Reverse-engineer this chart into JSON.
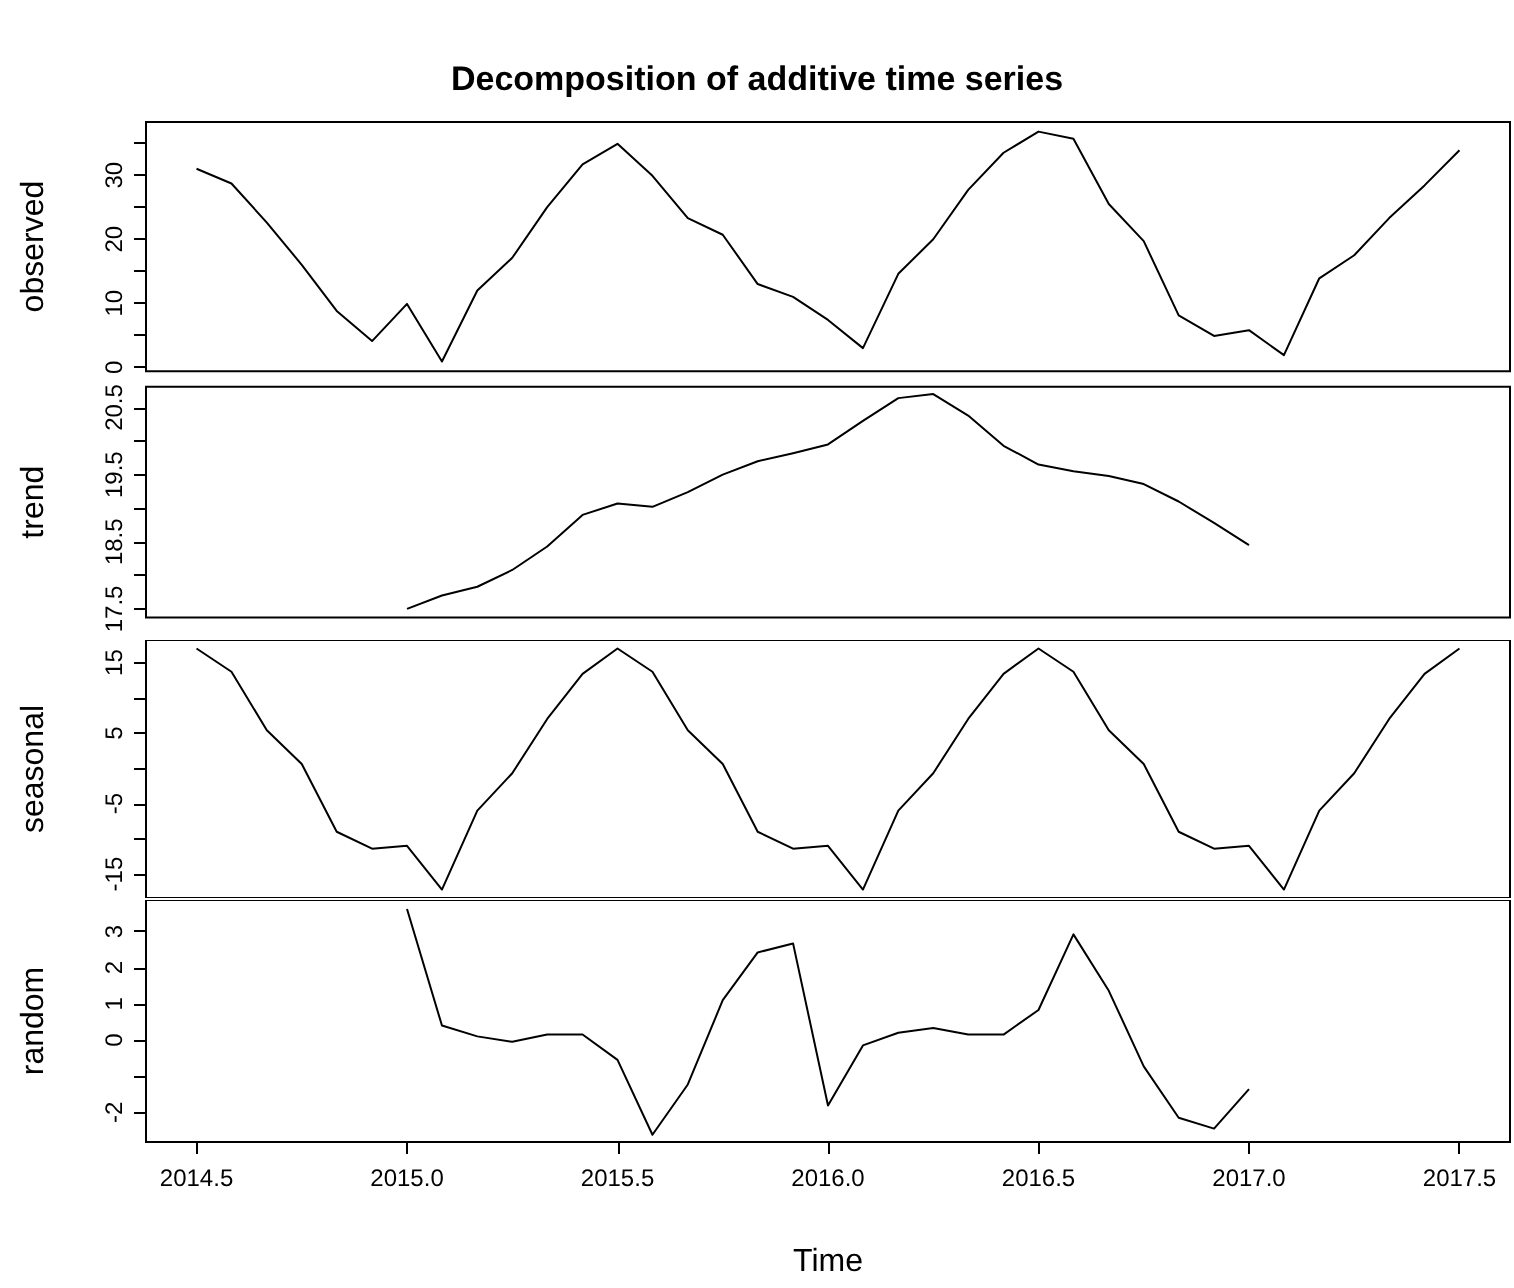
{
  "chart_data": [
    {
      "type": "line",
      "title": "Decomposition of additive time series",
      "ylabel": "observed",
      "tick_labels": "y",
      "x": [
        2014.5,
        2014.583,
        2014.667,
        2014.75,
        2014.833,
        2014.917,
        2015,
        2015.083,
        2015.167,
        2015.25,
        2015.333,
        2015.417,
        2015.5,
        2015.583,
        2015.667,
        2015.75,
        2015.833,
        2015.917,
        2016,
        2016.083,
        2016.167,
        2016.25,
        2016.333,
        2016.417,
        2016.5,
        2016.583,
        2016.667,
        2016.75,
        2016.833,
        2016.917,
        2017,
        2017.083,
        2017.167,
        2017.25,
        2017.333,
        2017.417,
        2017.5
      ],
      "series": [
        {
          "color": "#000000",
          "values": [
            31,
            28.7,
            22.6,
            16,
            8.8,
            4.1,
            9.9,
            0.9,
            12,
            17.1,
            25,
            31.7,
            34.9,
            29.9,
            23.3,
            20.7,
            13,
            11,
            7.4,
            3,
            14.6,
            20,
            27.7,
            33.5,
            36.8,
            35.7,
            25.5,
            19.7,
            8.1,
            4.9,
            5.8,
            1.9,
            13.9,
            17.5,
            23.3,
            28.4,
            33.9
          ]
        }
      ],
      "xlim": [
        2014.38,
        2017.62
      ],
      "ylim": [
        -0.6,
        38.3
      ],
      "yticks": [
        0,
        {
          "value": 5,
          "label": null
        },
        10,
        {
          "value": 15,
          "label": null
        },
        20,
        {
          "value": 25,
          "label": null
        },
        30,
        {
          "value": 35,
          "label": null
        }
      ]
    },
    {
      "type": "line",
      "ylabel": "trend",
      "tick_labels": "y",
      "x": [
        2015,
        2015.083,
        2015.167,
        2015.25,
        2015.333,
        2015.417,
        2015.5,
        2015.583,
        2015.667,
        2015.75,
        2015.833,
        2015.917,
        2016,
        2016.083,
        2016.167,
        2016.25,
        2016.333,
        2016.417,
        2016.5,
        2016.583,
        2016.667,
        2016.75,
        2016.833,
        2016.917,
        2017
      ],
      "series": [
        {
          "color": "#000000",
          "values": [
            17.5,
            17.7,
            17.83,
            18.08,
            18.43,
            18.9,
            19.07,
            19.02,
            19.24,
            19.5,
            19.7,
            19.82,
            19.95,
            20.3,
            20.64,
            20.7,
            20.38,
            19.93,
            19.65,
            19.55,
            19.48,
            19.36,
            19.1,
            18.78,
            18.45
          ]
        }
      ],
      "xlim": [
        2014.38,
        2017.62
      ],
      "ylim": [
        17.37,
        20.81
      ],
      "yticks": [
        17.5,
        {
          "value": 18,
          "label": null
        },
        18.5,
        {
          "value": 19,
          "label": null
        },
        19.5,
        {
          "value": 20,
          "label": null
        },
        20.5
      ]
    },
    {
      "type": "line",
      "ylabel": "seasonal",
      "tick_labels": "y",
      "x": [
        2014.5,
        2014.583,
        2014.667,
        2014.75,
        2014.833,
        2014.917,
        2015,
        2015.083,
        2015.167,
        2015.25,
        2015.333,
        2015.417,
        2015.5,
        2015.583,
        2015.667,
        2015.75,
        2015.833,
        2015.917,
        2016,
        2016.083,
        2016.167,
        2016.25,
        2016.333,
        2016.417,
        2016.5,
        2016.583,
        2016.667,
        2016.75,
        2016.833,
        2016.917,
        2017,
        2017.083,
        2017.167,
        2017.25,
        2017.333,
        2017.417,
        2017.5
      ],
      "series": [
        {
          "color": "#000000",
          "values": [
            17,
            13.7,
            5.4,
            0.6,
            -9,
            -11.4,
            -11,
            -17.2,
            -6,
            -0.7,
            7,
            13.4,
            17,
            13.7,
            5.4,
            0.6,
            -9,
            -11.4,
            -11,
            -17.2,
            -6,
            -0.7,
            7,
            13.4,
            17,
            13.7,
            5.4,
            0.6,
            -9,
            -11.4,
            -11,
            -17.2,
            -6,
            -0.7,
            7,
            13.4,
            17
          ]
        }
      ],
      "xlim": [
        2014.38,
        2017.62
      ],
      "ylim": [
        -18.4,
        18.2
      ],
      "yticks": [
        -15,
        {
          "value": -10,
          "label": null
        },
        -5,
        {
          "value": 0,
          "label": null
        },
        5,
        {
          "value": 10,
          "label": null
        },
        15
      ]
    },
    {
      "type": "line",
      "ylabel": "random",
      "xlabel": "Time",
      "x": [
        2015,
        2015.083,
        2015.167,
        2015.25,
        2015.333,
        2015.417,
        2015.5,
        2015.583,
        2015.667,
        2015.75,
        2015.833,
        2015.917,
        2016,
        2016.083,
        2016.167,
        2016.25,
        2016.333,
        2016.417,
        2016.5,
        2016.583,
        2016.667,
        2016.75,
        2016.833,
        2016.917,
        2017
      ],
      "series": [
        {
          "color": "#000000",
          "values": [
            3.62,
            0.4,
            0.1,
            -0.05,
            0.15,
            0.15,
            -0.55,
            -2.62,
            -1.23,
            1.1,
            2.42,
            2.67,
            -1.81,
            -0.15,
            0.2,
            0.33,
            0.15,
            0.15,
            0.83,
            2.92,
            1.36,
            -0.73,
            -2.15,
            -2.45,
            -1.36
          ]
        }
      ],
      "xlim": [
        2014.38,
        2017.62
      ],
      "ylim": [
        -2.82,
        3.87
      ],
      "yticks": [
        -2,
        {
          "value": -1,
          "label": null
        },
        0,
        1,
        2,
        3
      ],
      "xticks": [
        2014.5,
        {
          "value": 2015,
          "label": "2015.0"
        },
        2015.5,
        {
          "value": 2016,
          "label": "2016.0"
        },
        2016.5,
        {
          "value": 2017,
          "label": "2017.0"
        },
        2017.5
      ]
    }
  ]
}
